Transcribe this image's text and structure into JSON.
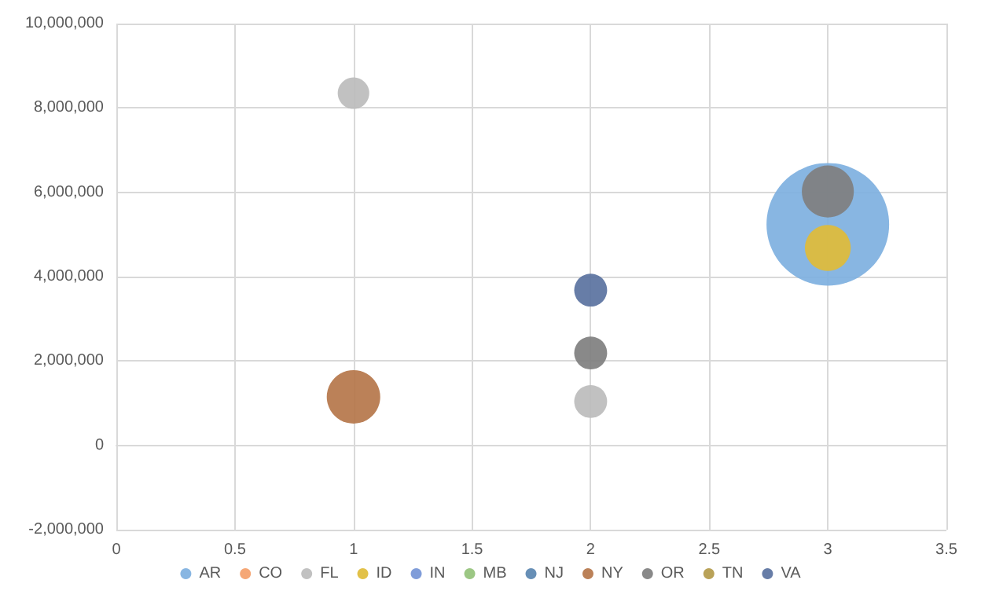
{
  "chart_data": {
    "type": "bubble",
    "xlim": [
      0,
      3.5
    ],
    "xticks": [
      0,
      0.5,
      1,
      1.5,
      2,
      2.5,
      3,
      3.5
    ],
    "ylim": [
      -2000000,
      10000000
    ],
    "yticks": [
      {
        "value": -2000000,
        "label": "-2,000,000"
      },
      {
        "value": 0,
        "label": "0"
      },
      {
        "value": 2000000,
        "label": "2,000,000"
      },
      {
        "value": 4000000,
        "label": "4,000,000"
      },
      {
        "value": 6000000,
        "label": "6,000,000"
      },
      {
        "value": 8000000,
        "label": "8,000,000"
      },
      {
        "value": 10000000,
        "label": "10,000,000"
      }
    ],
    "grid": true,
    "legend": "bottom",
    "marker": "circle",
    "series": [
      {
        "name": "AR",
        "color": "#7eb0e0",
        "x": [
          3
        ],
        "values": [
          5240000
        ],
        "sizes": [
          1
        ]
      },
      {
        "name": "CO",
        "color": "#f4a06a"
      },
      {
        "name": "FL",
        "color": "#bcbcbc",
        "x": [
          1,
          2
        ],
        "values": [
          8350000,
          1040000
        ],
        "sizes": [
          0.066,
          0.072
        ]
      },
      {
        "name": "ID",
        "color": "#e0bc38",
        "x": [
          3
        ],
        "values": [
          4680000
        ],
        "sizes": [
          0.14
        ]
      },
      {
        "name": "IN",
        "color": "#7595d6"
      },
      {
        "name": "MB",
        "color": "#94c27a"
      },
      {
        "name": "NJ",
        "color": "#5a86b0"
      },
      {
        "name": "NY",
        "color": "#b5764a",
        "x": [
          1
        ],
        "values": [
          1150000
        ],
        "sizes": [
          0.19
        ]
      },
      {
        "name": "OR",
        "color": "#7f7f7f",
        "x": [
          2,
          3
        ],
        "values": [
          2190000,
          6020000
        ],
        "sizes": [
          0.072,
          0.18
        ]
      },
      {
        "name": "TN",
        "color": "#b39a4a"
      },
      {
        "name": "VA",
        "color": "#5a72a0",
        "x": [
          2
        ],
        "values": [
          3680000
        ],
        "sizes": [
          0.072
        ]
      }
    ]
  }
}
